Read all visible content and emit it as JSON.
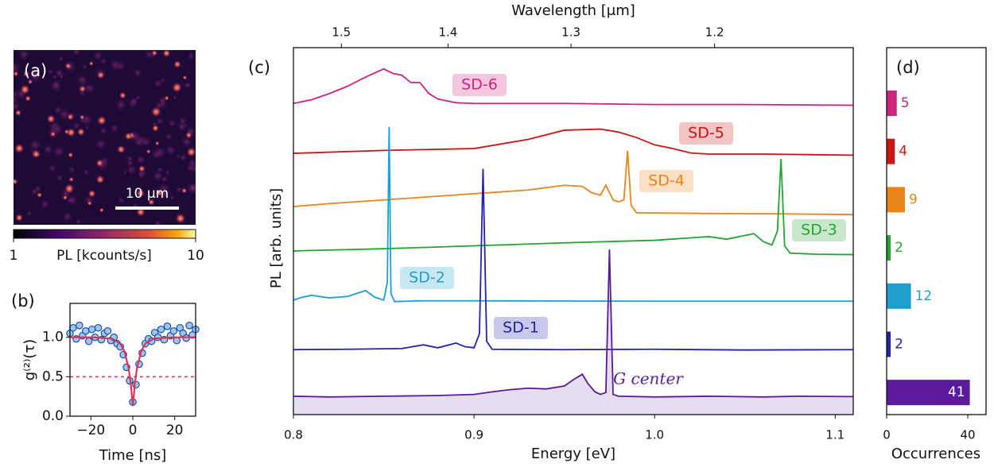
{
  "chart_data": [
    {
      "type": "image",
      "panel": "(a)",
      "scalebar_label": "10 μm",
      "colorbar_label": "PL [kcounts/s]",
      "clim": [
        1,
        10
      ],
      "cticks": [
        1,
        10
      ]
    },
    {
      "type": "scatter",
      "panel": "(b)",
      "xlabel": "Time [ns]",
      "ylabel": "g⁽²⁾(τ)",
      "xlim": [
        -30,
        30
      ],
      "ylim": [
        0,
        1.43
      ],
      "xticks": [
        {
          "value": -20,
          "label": "−20"
        },
        0,
        20
      ],
      "yticks": [
        {
          "value": 0,
          "label": "0.0"
        },
        {
          "value": 0.5,
          "label": "0.5"
        },
        {
          "value": 1,
          "label": "1.0"
        }
      ],
      "hline": 0.5,
      "x": [
        -30,
        -28.5,
        -27,
        -25.5,
        -24,
        -22.5,
        -21,
        -19.5,
        -18,
        -16.5,
        -15,
        -13.5,
        -12,
        -10.5,
        -9,
        -7.5,
        -6,
        -4.5,
        -3,
        -1.5,
        0,
        1.5,
        3,
        4.5,
        6,
        7.5,
        9,
        10.5,
        12,
        13.5,
        15,
        16.5,
        18,
        19.5,
        21,
        22.5,
        24,
        25.5,
        27,
        28.5,
        30
      ],
      "values": [
        1.05,
        1.12,
        0.98,
        1.15,
        1.02,
        1.08,
        0.95,
        1.1,
        1.0,
        1.12,
        0.97,
        1.05,
        1.08,
        0.96,
        1.0,
        0.92,
        0.88,
        0.78,
        0.62,
        0.45,
        0.18,
        0.4,
        0.66,
        0.8,
        0.92,
        0.98,
        0.95,
        1.06,
        1.0,
        1.1,
        0.97,
        1.14,
        1.02,
        1.08,
        0.96,
        1.12,
        1.05,
        0.99,
        1.15,
        1.03,
        1.1
      ],
      "color": "#9cc8f0",
      "edge_color": "#1a4fb0",
      "fit": {
        "color": "#e0335a",
        "x": [
          -30,
          -20,
          -10,
          -6,
          -4,
          -2,
          -1,
          0,
          1,
          2,
          4,
          6,
          10,
          20,
          30
        ],
        "values": [
          1.0,
          1.0,
          0.984,
          0.921,
          0.824,
          0.609,
          0.417,
          0.13,
          0.417,
          0.609,
          0.824,
          0.921,
          0.984,
          1.0,
          1.0
        ]
      }
    },
    {
      "type": "line",
      "panel": "(c)",
      "xlabel": "Energy [eV]",
      "ylabel": "PL [arb. units]",
      "x2label": "Wavelength [μm]",
      "xlim": [
        0.8,
        1.11
      ],
      "ylim": [
        0,
        10
      ],
      "xticks": [
        0.8,
        0.9,
        {
          "value": 1.0,
          "label": "1.0"
        },
        1.1
      ],
      "x2ticks": [
        1.5,
        1.4,
        1.3,
        1.2
      ],
      "series": [
        {
          "name": "SD-6",
          "color": "#d0237f",
          "x": [
            0.8,
            0.81,
            0.82,
            0.83,
            0.84,
            0.85,
            0.855,
            0.86,
            0.865,
            0.87,
            0.875,
            0.88,
            0.89,
            0.9,
            0.95,
            1.0,
            1.05,
            1.11
          ],
          "values": [
            8.48,
            8.58,
            8.75,
            8.95,
            9.2,
            9.42,
            9.3,
            9.25,
            9.05,
            9.05,
            8.75,
            8.6,
            8.5,
            8.48,
            8.48,
            8.45,
            8.45,
            8.43
          ]
        },
        {
          "name": "SD-5",
          "color": "#cc1515",
          "x": [
            0.8,
            0.85,
            0.9,
            0.93,
            0.95,
            0.97,
            0.98,
            0.99,
            1.0,
            1.01,
            1.02,
            1.03,
            1.06,
            1.11
          ],
          "values": [
            7.12,
            7.2,
            7.25,
            7.5,
            7.75,
            7.78,
            7.7,
            7.55,
            7.35,
            7.25,
            7.13,
            7.1,
            7.1,
            7.07
          ]
        },
        {
          "name": "SD-4",
          "color": "#e8851b",
          "x": [
            0.8,
            0.82,
            0.85,
            0.9,
            0.93,
            0.95,
            0.96,
            0.965,
            0.97,
            0.973,
            0.977,
            0.98,
            0.983,
            0.985,
            0.987,
            0.99,
            1.03,
            1.07,
            1.11
          ],
          "values": [
            5.67,
            5.75,
            5.85,
            6.02,
            6.12,
            6.25,
            6.22,
            6.05,
            5.98,
            6.25,
            5.85,
            5.8,
            5.85,
            7.19,
            5.7,
            5.5,
            5.48,
            5.47,
            5.45
          ]
        },
        {
          "name": "SD-3",
          "color": "#22a533",
          "x": [
            0.8,
            0.85,
            0.9,
            0.95,
            1.0,
            1.03,
            1.04,
            1.05,
            1.055,
            1.06,
            1.065,
            1.068,
            1.07,
            1.072,
            1.075,
            1.09,
            1.11
          ],
          "values": [
            4.46,
            4.52,
            4.6,
            4.68,
            4.75,
            4.85,
            4.78,
            4.88,
            4.93,
            4.72,
            4.62,
            5.0,
            6.97,
            4.6,
            4.4,
            4.37,
            4.36
          ]
        },
        {
          "name": "SD-2",
          "color": "#1f9fd0",
          "x": [
            0.8,
            0.805,
            0.81,
            0.82,
            0.83,
            0.835,
            0.84,
            0.845,
            0.85,
            0.852,
            0.853,
            0.854,
            0.856,
            0.87,
            0.9,
            1.0,
            1.11
          ],
          "values": [
            3.12,
            3.2,
            3.25,
            3.18,
            3.22,
            3.3,
            3.38,
            3.2,
            3.12,
            3.6,
            7.84,
            3.3,
            3.08,
            3.1,
            3.1,
            3.09,
            3.09
          ]
        },
        {
          "name": "SD-1",
          "color": "#2222aa",
          "x": [
            0.8,
            0.83,
            0.86,
            0.872,
            0.88,
            0.89,
            0.895,
            0.9,
            0.903,
            0.905,
            0.907,
            0.91,
            0.95,
            1.0,
            1.05,
            1.11
          ],
          "values": [
            1.77,
            1.78,
            1.8,
            1.9,
            1.82,
            1.95,
            1.85,
            1.82,
            2.2,
            6.7,
            2.0,
            1.78,
            1.77,
            1.78,
            1.76,
            1.77
          ]
        },
        {
          "name": "G center",
          "color": "#5b1a9a",
          "fill": true,
          "x": [
            0.8,
            0.82,
            0.85,
            0.88,
            0.9,
            0.91,
            0.92,
            0.93,
            0.94,
            0.95,
            0.955,
            0.96,
            0.963,
            0.967,
            0.97,
            0.973,
            0.975,
            0.977,
            0.98,
            1.0,
            1.03,
            1.06,
            1.08,
            1.11
          ],
          "values": [
            0.5,
            0.48,
            0.5,
            0.52,
            0.55,
            0.62,
            0.68,
            0.72,
            0.7,
            0.78,
            0.95,
            1.1,
            0.85,
            0.62,
            0.55,
            0.6,
            4.5,
            0.55,
            0.5,
            0.48,
            0.5,
            0.48,
            0.5,
            0.49
          ]
        }
      ]
    },
    {
      "type": "hbar",
      "panel": "(d)",
      "xlabel": "Occurrences",
      "xlim": [
        0,
        49
      ],
      "xticks": [
        0,
        40
      ],
      "values": [
        5,
        4,
        9,
        2,
        12,
        2,
        41
      ],
      "colors": [
        "#d0237f",
        "#cc1515",
        "#e8851b",
        "#22a533",
        "#1f9fd0",
        "#2222aa",
        "#5b1a9a"
      ]
    }
  ]
}
